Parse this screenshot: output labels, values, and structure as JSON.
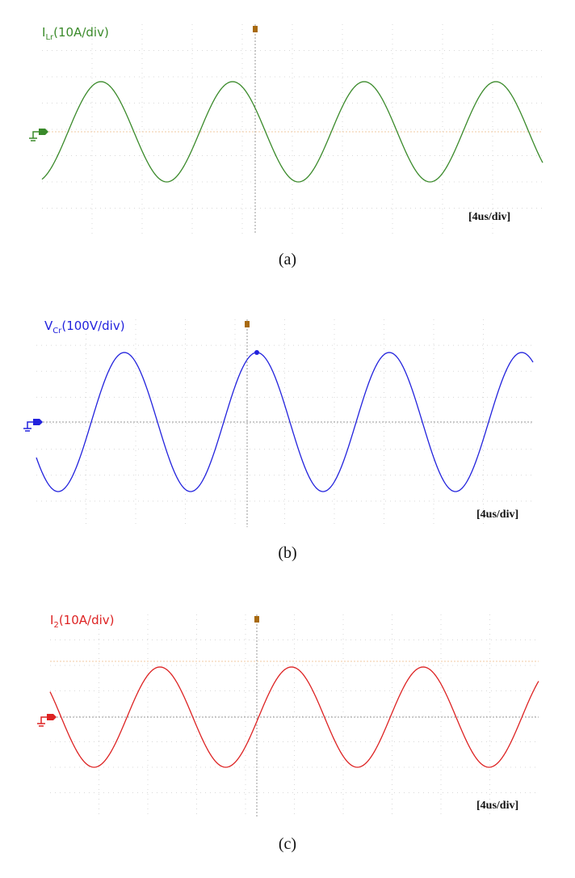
{
  "panels": [
    {
      "label": {
        "symbol": "I",
        "subscript": "Lr",
        "scale": "(10A/div)"
      },
      "timebase": "[4us/div]",
      "caption": "(a)"
    },
    {
      "label": {
        "symbol": "V",
        "subscript": "Cr",
        "scale": "(100V/div)"
      },
      "timebase": "[4us/div]",
      "caption": "(b)"
    },
    {
      "label": {
        "symbol": "I",
        "subscript": "2",
        "scale": "(10A/div)"
      },
      "timebase": "[4us/div]",
      "caption": "(c)"
    }
  ]
}
